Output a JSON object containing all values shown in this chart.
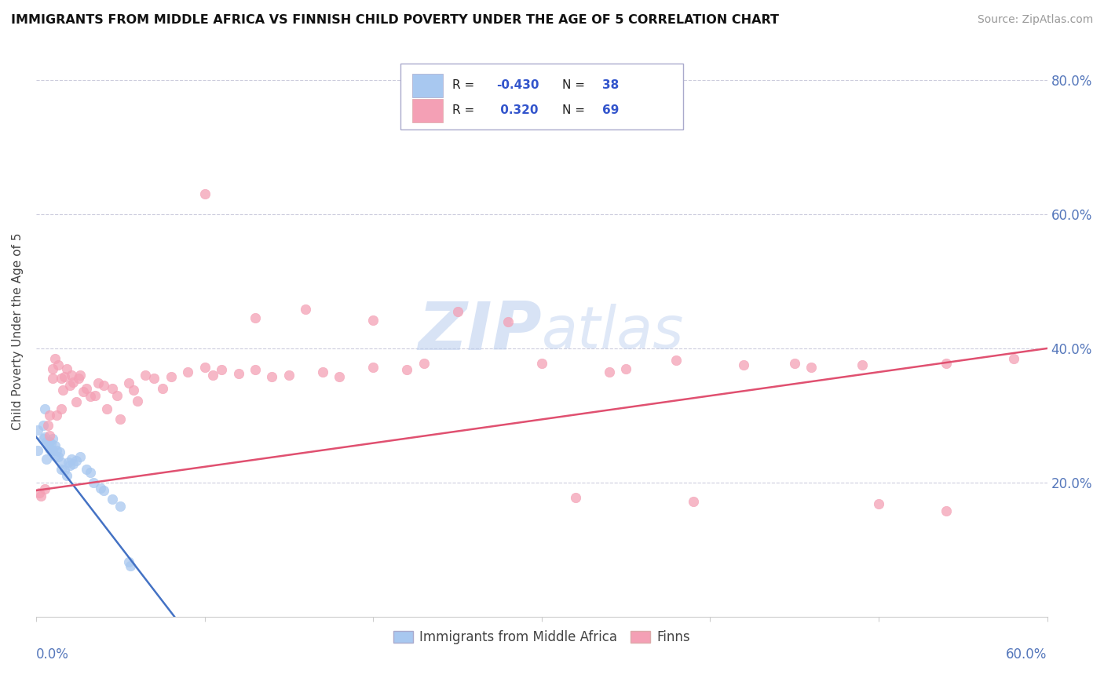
{
  "title": "IMMIGRANTS FROM MIDDLE AFRICA VS FINNISH CHILD POVERTY UNDER THE AGE OF 5 CORRELATION CHART",
  "source": "Source: ZipAtlas.com",
  "ylabel": "Child Poverty Under the Age of 5",
  "yaxis_ticks": [
    0.2,
    0.4,
    0.6,
    0.8
  ],
  "yaxis_labels": [
    "20.0%",
    "40.0%",
    "60.0%",
    "80.0%"
  ],
  "xlim": [
    0.0,
    0.6
  ],
  "ylim": [
    0.0,
    0.85
  ],
  "color_blue": "#A8C8F0",
  "color_pink": "#F4A0B5",
  "line_blue": "#4472C4",
  "line_pink": "#E05070",
  "watermark_color": "#C8D8F0",
  "blue_line_x": [
    0.0,
    0.082
  ],
  "blue_line_y": [
    0.268,
    0.0
  ],
  "pink_line_x": [
    0.0,
    0.6
  ],
  "pink_line_y": [
    0.188,
    0.4
  ],
  "blue_points": [
    [
      0.001,
      0.278
    ],
    [
      0.001,
      0.248
    ],
    [
      0.005,
      0.31
    ],
    [
      0.004,
      0.285
    ],
    [
      0.004,
      0.265
    ],
    [
      0.006,
      0.26
    ],
    [
      0.005,
      0.268
    ],
    [
      0.007,
      0.255
    ],
    [
      0.006,
      0.235
    ],
    [
      0.008,
      0.26
    ],
    [
      0.008,
      0.25
    ],
    [
      0.009,
      0.258
    ],
    [
      0.009,
      0.248
    ],
    [
      0.01,
      0.248
    ],
    [
      0.01,
      0.265
    ],
    [
      0.011,
      0.255
    ],
    [
      0.011,
      0.24
    ],
    [
      0.012,
      0.248
    ],
    [
      0.013,
      0.238
    ],
    [
      0.014,
      0.245
    ],
    [
      0.015,
      0.23
    ],
    [
      0.015,
      0.22
    ],
    [
      0.017,
      0.218
    ],
    [
      0.018,
      0.21
    ],
    [
      0.019,
      0.23
    ],
    [
      0.02,
      0.225
    ],
    [
      0.021,
      0.235
    ],
    [
      0.022,
      0.228
    ],
    [
      0.024,
      0.232
    ],
    [
      0.026,
      0.238
    ],
    [
      0.03,
      0.22
    ],
    [
      0.032,
      0.215
    ],
    [
      0.034,
      0.2
    ],
    [
      0.038,
      0.192
    ],
    [
      0.04,
      0.188
    ],
    [
      0.045,
      0.175
    ],
    [
      0.05,
      0.165
    ],
    [
      0.055,
      0.082
    ],
    [
      0.056,
      0.075
    ]
  ],
  "pink_points": [
    [
      0.002,
      0.185
    ],
    [
      0.003,
      0.18
    ],
    [
      0.005,
      0.19
    ],
    [
      0.007,
      0.285
    ],
    [
      0.008,
      0.27
    ],
    [
      0.008,
      0.3
    ],
    [
      0.01,
      0.355
    ],
    [
      0.01,
      0.37
    ],
    [
      0.011,
      0.385
    ],
    [
      0.012,
      0.3
    ],
    [
      0.013,
      0.375
    ],
    [
      0.015,
      0.355
    ],
    [
      0.015,
      0.31
    ],
    [
      0.016,
      0.338
    ],
    [
      0.017,
      0.358
    ],
    [
      0.018,
      0.37
    ],
    [
      0.02,
      0.345
    ],
    [
      0.021,
      0.36
    ],
    [
      0.022,
      0.35
    ],
    [
      0.024,
      0.32
    ],
    [
      0.025,
      0.355
    ],
    [
      0.026,
      0.36
    ],
    [
      0.028,
      0.335
    ],
    [
      0.03,
      0.34
    ],
    [
      0.032,
      0.328
    ],
    [
      0.035,
      0.33
    ],
    [
      0.037,
      0.348
    ],
    [
      0.04,
      0.345
    ],
    [
      0.042,
      0.31
    ],
    [
      0.045,
      0.34
    ],
    [
      0.048,
      0.33
    ],
    [
      0.05,
      0.295
    ],
    [
      0.055,
      0.348
    ],
    [
      0.058,
      0.338
    ],
    [
      0.06,
      0.322
    ],
    [
      0.065,
      0.36
    ],
    [
      0.07,
      0.355
    ],
    [
      0.075,
      0.34
    ],
    [
      0.08,
      0.358
    ],
    [
      0.09,
      0.365
    ],
    [
      0.1,
      0.372
    ],
    [
      0.105,
      0.36
    ],
    [
      0.11,
      0.368
    ],
    [
      0.12,
      0.362
    ],
    [
      0.13,
      0.368
    ],
    [
      0.14,
      0.358
    ],
    [
      0.15,
      0.36
    ],
    [
      0.17,
      0.365
    ],
    [
      0.18,
      0.358
    ],
    [
      0.2,
      0.372
    ],
    [
      0.22,
      0.368
    ],
    [
      0.23,
      0.378
    ],
    [
      0.1,
      0.63
    ],
    [
      0.25,
      0.455
    ],
    [
      0.28,
      0.44
    ],
    [
      0.13,
      0.445
    ],
    [
      0.16,
      0.458
    ],
    [
      0.2,
      0.442
    ],
    [
      0.3,
      0.378
    ],
    [
      0.34,
      0.365
    ],
    [
      0.38,
      0.382
    ],
    [
      0.42,
      0.375
    ],
    [
      0.45,
      0.378
    ],
    [
      0.35,
      0.37
    ],
    [
      0.46,
      0.372
    ],
    [
      0.49,
      0.375
    ],
    [
      0.54,
      0.378
    ],
    [
      0.5,
      0.168
    ],
    [
      0.54,
      0.158
    ],
    [
      0.32,
      0.178
    ],
    [
      0.39,
      0.172
    ],
    [
      0.58,
      0.385
    ]
  ]
}
